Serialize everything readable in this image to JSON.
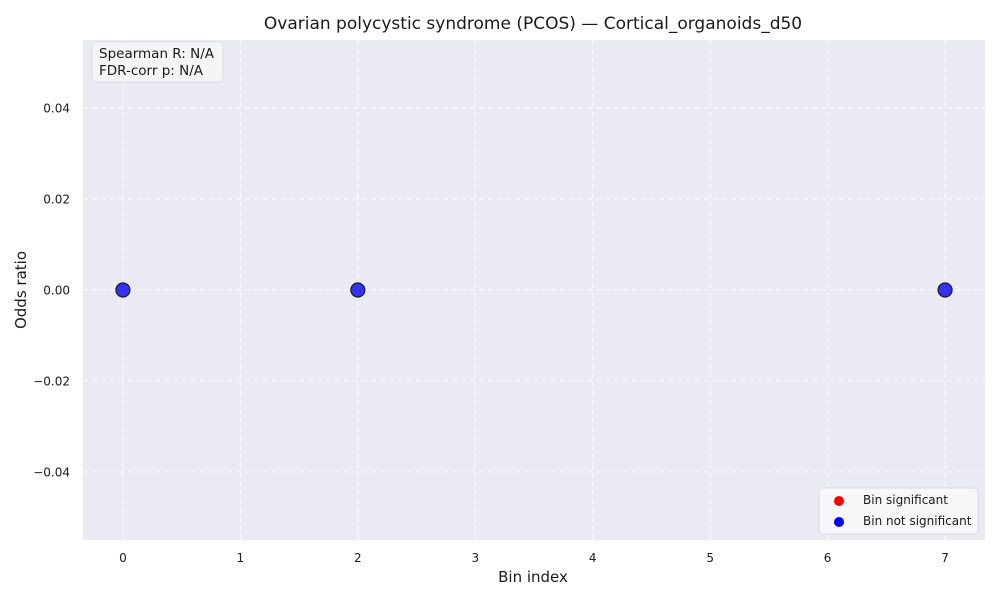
{
  "chart_data": {
    "type": "scatter",
    "title": "Ovarian polycystic syndrome (PCOS) — Cortical_organoids_d50",
    "xlabel": "Bin index",
    "ylabel": "Odds ratio",
    "xlim": [
      -0.34,
      7.34
    ],
    "ylim": [
      -0.055,
      0.055
    ],
    "x_ticks": [
      0,
      1,
      2,
      3,
      4,
      5,
      6,
      7
    ],
    "y_ticks": [
      -0.04,
      -0.02,
      0.0,
      0.02,
      0.04
    ],
    "y_tick_labels": [
      "−0.04",
      "−0.02",
      "0.00",
      "0.02",
      "0.04"
    ],
    "grid": true,
    "series": [
      {
        "name": "Bin significant",
        "color": "#ff0000",
        "points": []
      },
      {
        "name": "Bin not significant",
        "color": "#0000ff",
        "points": [
          {
            "x": 0,
            "y": 0.0
          },
          {
            "x": 2,
            "y": 0.0
          },
          {
            "x": 7,
            "y": 0.0
          }
        ]
      }
    ],
    "annotation": {
      "line1": "Spearman R: N/A",
      "line2": "FDR-corr p: N/A"
    },
    "legend": {
      "placement": "bottom-right",
      "entries": [
        {
          "label": "Bin significant",
          "color": "#ff0000"
        },
        {
          "label": "Bin not significant",
          "color": "#0000ff"
        }
      ]
    },
    "colors": {
      "plot_bg": "#eaeaf2",
      "grid": "#ffffff",
      "marker_fill": "#3333ee",
      "marker_edge": "#1a1a33"
    }
  }
}
